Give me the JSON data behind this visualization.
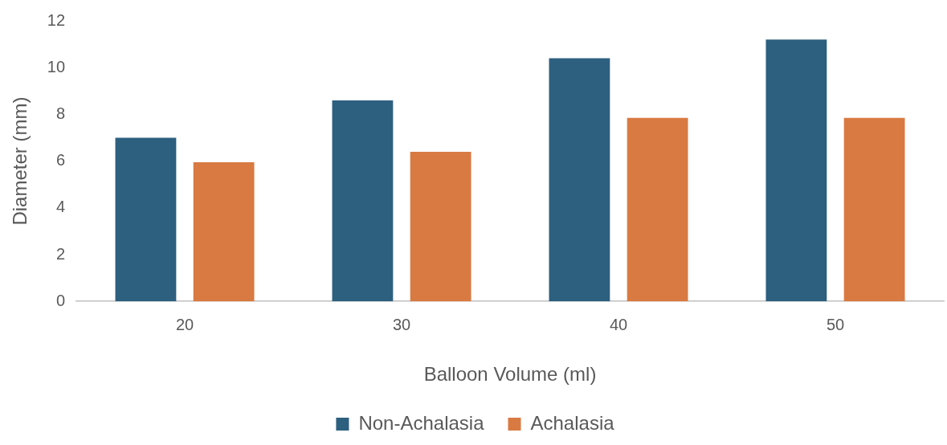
{
  "chart_data": {
    "type": "bar",
    "xlabel": "Balloon Volume (ml)",
    "ylabel": "Diameter (mm)",
    "categories": [
      "20",
      "30",
      "40",
      "50"
    ],
    "series": [
      {
        "name": "Non-Achalasia",
        "color": "#2d5f7f",
        "values": [
          7.0,
          8.6,
          10.4,
          11.2
        ]
      },
      {
        "name": "Achalasia",
        "color": "#d87a42",
        "values": [
          5.95,
          6.4,
          7.85,
          7.85
        ]
      }
    ],
    "ylim": [
      0,
      12
    ],
    "yticks": [
      0,
      2,
      4,
      6,
      8,
      10,
      12
    ],
    "grid": false,
    "legend": "bottom"
  }
}
